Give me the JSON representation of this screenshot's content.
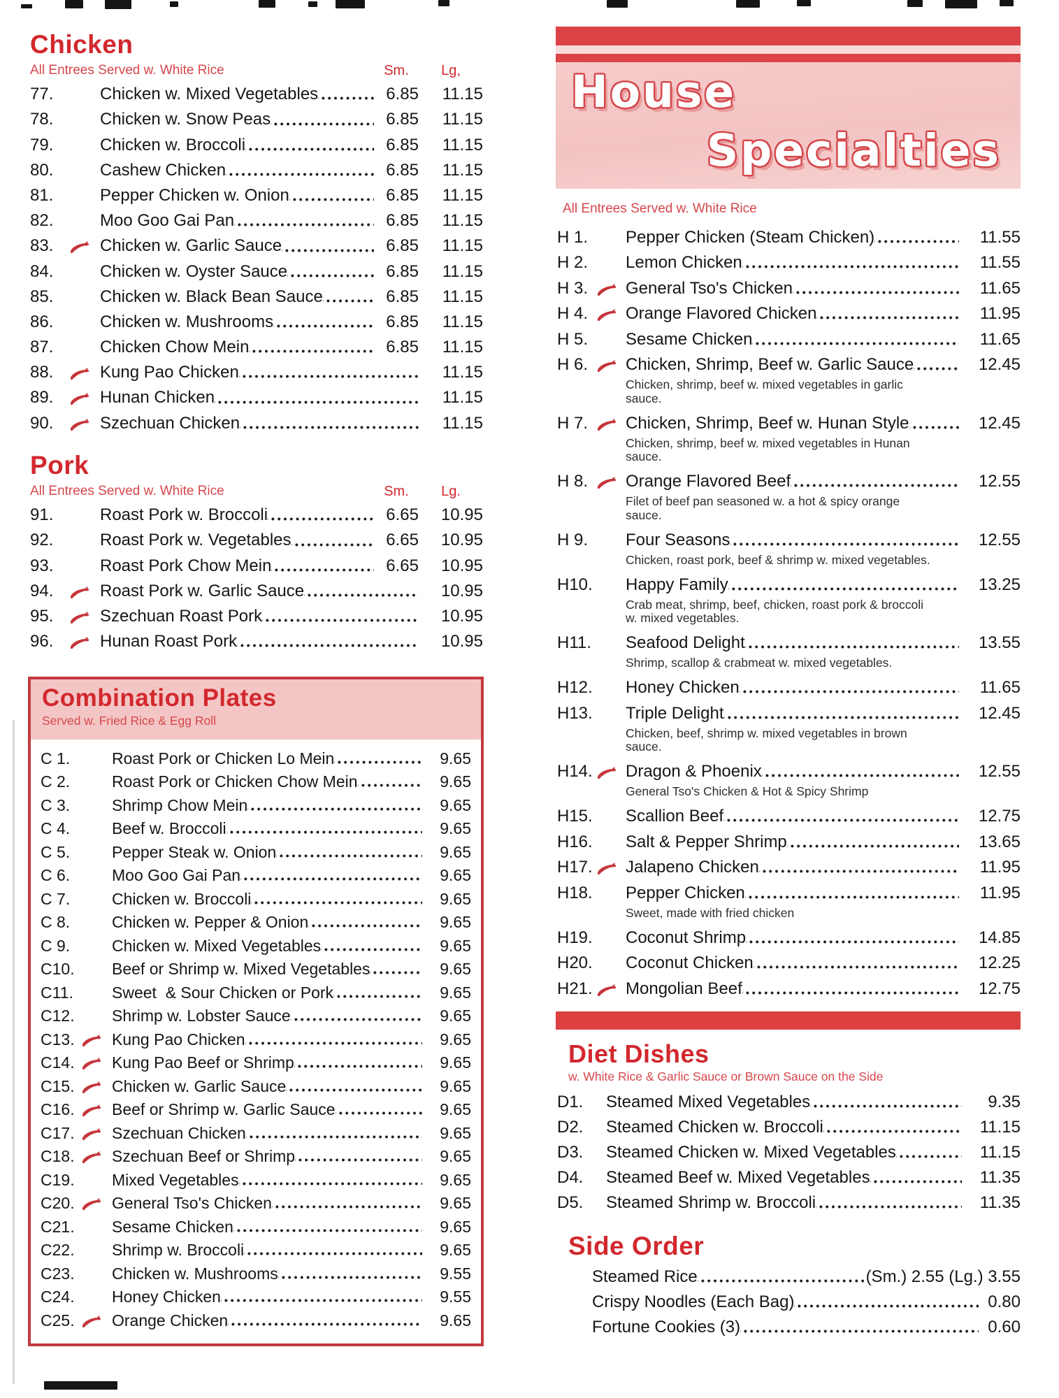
{
  "page": {
    "accent_red": "#d2282e",
    "note_red": "#d6474c",
    "banner_pink": "#f5c9c8",
    "bar_red": "#dc4347"
  },
  "chicken": {
    "title": "Chicken",
    "note": "All Entrees Served w. White Rice",
    "col_sm": "Sm.",
    "col_lg": "Lg,",
    "items": [
      {
        "num": "77.",
        "spicy": false,
        "name": "Chicken w. Mixed Vegetables",
        "sm": "6.85",
        "lg": "11.15"
      },
      {
        "num": "78.",
        "spicy": false,
        "name": "Chicken w. Snow Peas",
        "sm": "6.85",
        "lg": "11.15"
      },
      {
        "num": "79.",
        "spicy": false,
        "name": "Chicken w. Broccoli",
        "sm": "6.85",
        "lg": "11.15"
      },
      {
        "num": "80.",
        "spicy": false,
        "name": "Cashew Chicken",
        "sm": "6.85",
        "lg": "11.15"
      },
      {
        "num": "81.",
        "spicy": false,
        "name": "Pepper Chicken w. Onion",
        "sm": "6.85",
        "lg": "11.15"
      },
      {
        "num": "82.",
        "spicy": false,
        "name": "Moo Goo Gai Pan",
        "sm": "6.85",
        "lg": "11.15"
      },
      {
        "num": "83.",
        "spicy": true,
        "name": "Chicken w. Garlic Sauce",
        "sm": "6.85",
        "lg": "11.15"
      },
      {
        "num": "84.",
        "spicy": false,
        "name": "Chicken w. Oyster Sauce",
        "sm": "6.85",
        "lg": "11.15"
      },
      {
        "num": "85.",
        "spicy": false,
        "name": "Chicken w. Black Bean Sauce",
        "sm": "6.85",
        "lg": "11.15"
      },
      {
        "num": "86.",
        "spicy": false,
        "name": "Chicken w. Mushrooms",
        "sm": "6.85",
        "lg": "11.15"
      },
      {
        "num": "87.",
        "spicy": false,
        "name": "Chicken Chow Mein",
        "sm": "6.85",
        "lg": "11.15"
      },
      {
        "num": "88.",
        "spicy": true,
        "name": "Kung Pao Chicken",
        "sm": "",
        "lg": "11.15"
      },
      {
        "num": "89.",
        "spicy": true,
        "name": "Hunan Chicken",
        "sm": "",
        "lg": "11.15"
      },
      {
        "num": "90.",
        "spicy": true,
        "name": "Szechuan Chicken",
        "sm": "",
        "lg": "11.15"
      }
    ]
  },
  "pork": {
    "title": "Pork",
    "note": "All Entrees Served w. White Rice",
    "col_sm": "Sm.",
    "col_lg": "Lg.",
    "items": [
      {
        "num": "91.",
        "spicy": false,
        "name": "Roast Pork w. Broccoli",
        "sm": "6.65",
        "lg": "10.95"
      },
      {
        "num": "92.",
        "spicy": false,
        "name": "Roast Pork w. Vegetables",
        "sm": "6.65",
        "lg": "10.95"
      },
      {
        "num": "93.",
        "spicy": false,
        "name": "Roast Pork Chow Mein",
        "sm": "6.65",
        "lg": "10.95"
      },
      {
        "num": "94.",
        "spicy": true,
        "name": "Roast Pork w. Garlic Sauce",
        "sm": "",
        "lg": "10.95"
      },
      {
        "num": "95.",
        "spicy": true,
        "name": "Szechuan Roast Pork",
        "sm": "",
        "lg": "10.95"
      },
      {
        "num": "96.",
        "spicy": true,
        "name": "Hunan Roast Pork",
        "sm": "",
        "lg": "10.95"
      }
    ]
  },
  "combo": {
    "title": "Combination Plates",
    "note": "Served w. Fried Rice & Egg Roll",
    "items": [
      {
        "num": "C 1.",
        "spicy": false,
        "name": "Roast Pork or Chicken Lo Mein",
        "price": "9.65"
      },
      {
        "num": "C 2.",
        "spicy": false,
        "name": "Roast Pork or Chicken Chow Mein",
        "price": "9.65"
      },
      {
        "num": "C 3.",
        "spicy": false,
        "name": "Shrimp Chow Mein",
        "price": "9.65"
      },
      {
        "num": "C 4.",
        "spicy": false,
        "name": "Beef w. Broccoli",
        "price": "9.65"
      },
      {
        "num": "C 5.",
        "spicy": false,
        "name": "Pepper Steak w. Onion",
        "price": "9.65"
      },
      {
        "num": "C 6.",
        "spicy": false,
        "name": "Moo Goo Gai Pan",
        "price": "9.65"
      },
      {
        "num": "C 7.",
        "spicy": false,
        "name": "Chicken w. Broccoli",
        "price": "9.65"
      },
      {
        "num": "C 8.",
        "spicy": false,
        "name": "Chicken w. Pepper & Onion",
        "price": "9.65"
      },
      {
        "num": "C 9.",
        "spicy": false,
        "name": "Chicken w. Mixed Vegetables",
        "price": "9.65"
      },
      {
        "num": "C10.",
        "spicy": false,
        "name": "Beef or Shrimp w. Mixed Vegetables",
        "price": "9.65"
      },
      {
        "num": "C11.",
        "spicy": false,
        "name": "Sweet  & Sour Chicken or Pork",
        "price": "9.65"
      },
      {
        "num": "C12.",
        "spicy": false,
        "name": "Shrimp w. Lobster Sauce",
        "price": "9.65"
      },
      {
        "num": "C13.",
        "spicy": true,
        "name": "Kung Pao Chicken",
        "price": "9.65"
      },
      {
        "num": "C14.",
        "spicy": true,
        "name": "Kung Pao Beef or Shrimp",
        "price": "9.65"
      },
      {
        "num": "C15.",
        "spicy": true,
        "name": "Chicken w. Garlic Sauce",
        "price": "9.65"
      },
      {
        "num": "C16.",
        "spicy": true,
        "name": "Beef or Shrimp w. Garlic Sauce",
        "price": "9.65"
      },
      {
        "num": "C17.",
        "spicy": true,
        "name": "Szechuan Chicken",
        "price": "9.65"
      },
      {
        "num": "C18.",
        "spicy": true,
        "name": "Szechuan Beef or Shrimp",
        "price": "9.65"
      },
      {
        "num": "C19.",
        "spicy": false,
        "name": "Mixed Vegetables",
        "price": "9.65"
      },
      {
        "num": "C20.",
        "spicy": true,
        "name": "General Tso's Chicken",
        "price": "9.65"
      },
      {
        "num": "C21.",
        "spicy": false,
        "name": "Sesame Chicken",
        "price": "9.65"
      },
      {
        "num": "C22.",
        "spicy": false,
        "name": "Shrimp w. Broccoli",
        "price": "9.65"
      },
      {
        "num": "C23.",
        "spicy": false,
        "name": "Chicken w. Mushrooms",
        "price": "9.55"
      },
      {
        "num": "C24.",
        "spicy": false,
        "name": "Honey Chicken",
        "price": "9.55"
      },
      {
        "num": "C25.",
        "spicy": true,
        "name": "Orange Chicken",
        "price": "9.65"
      }
    ]
  },
  "house": {
    "title_line1": "House",
    "title_line2": "Specialties",
    "note": "All Entrees Served w. White Rice",
    "items": [
      {
        "num": "H 1.",
        "spicy": false,
        "name": "Pepper Chicken (Steam Chicken)",
        "price": "11.55"
      },
      {
        "num": "H 2.",
        "spicy": false,
        "name": "Lemon Chicken",
        "price": "11.55"
      },
      {
        "num": "H 3.",
        "spicy": true,
        "name": "General Tso's Chicken",
        "price": "11.65"
      },
      {
        "num": "H 4.",
        "spicy": true,
        "name": "Orange Flavored Chicken",
        "price": "11.95"
      },
      {
        "num": "H 5.",
        "spicy": false,
        "name": "Sesame Chicken",
        "price": "11.65"
      },
      {
        "num": "H 6.",
        "spicy": true,
        "name": "Chicken, Shrimp, Beef w. Garlic Sauce",
        "price": "12.45",
        "desc": [
          "Chicken, shrimp, beef w. mixed vegetables in garlic",
          "sauce."
        ]
      },
      {
        "num": "H 7.",
        "spicy": true,
        "name": "Chicken, Shrimp, Beef w. Hunan Style",
        "price": "12.45",
        "desc": [
          "Chicken, shrimp, beef w. mixed vegetables in Hunan",
          "sauce."
        ]
      },
      {
        "num": "H 8.",
        "spicy": true,
        "name": "Orange Flavored Beef",
        "price": "12.55",
        "desc": [
          "Filet of beef pan seasoned w. a hot & spicy orange",
          "sauce."
        ]
      },
      {
        "num": "H 9.",
        "spicy": false,
        "name": "Four Seasons",
        "price": "12.55",
        "desc": [
          "Chicken, roast pork, beef & shrimp w. mixed vegetables."
        ]
      },
      {
        "num": "H10.",
        "spicy": false,
        "name": "Happy Family",
        "price": "13.25",
        "desc": [
          "Crab meat, shrimp, beef, chicken, roast pork & broccoli",
          "w. mixed vegetables."
        ]
      },
      {
        "num": "H11.",
        "spicy": false,
        "name": "Seafood Delight",
        "price": "13.55",
        "desc": [
          "Shrimp, scallop & crabmeat w. mixed vegetables."
        ]
      },
      {
        "num": "H12.",
        "spicy": false,
        "name": "Honey Chicken",
        "price": "11.65"
      },
      {
        "num": "H13.",
        "spicy": false,
        "name": "Triple Delight",
        "price": "12.45",
        "desc": [
          "Chicken, beef, shrimp w. mixed vegetables in brown",
          "sauce."
        ]
      },
      {
        "num": "H14.",
        "spicy": true,
        "name": "Dragon & Phoenix",
        "price": "12.55",
        "desc": [
          "General Tso's Chicken & Hot & Spicy Shrimp"
        ]
      },
      {
        "num": "H15.",
        "spicy": false,
        "name": "Scallion Beef",
        "price": "12.75"
      },
      {
        "num": "H16.",
        "spicy": false,
        "name": "Salt & Pepper Shrimp",
        "price": "13.65"
      },
      {
        "num": "H17.",
        "spicy": true,
        "name": "Jalapeno Chicken",
        "price": "11.95"
      },
      {
        "num": "H18.",
        "spicy": false,
        "name": "Pepper Chicken",
        "price": "11.95",
        "desc": [
          "Sweet, made with fried chicken"
        ]
      },
      {
        "num": "H19.",
        "spicy": false,
        "name": "Coconut Shrimp",
        "price": "14.85"
      },
      {
        "num": "H20.",
        "spicy": false,
        "name": "Coconut Chicken",
        "price": "12.25"
      },
      {
        "num": "H21.",
        "spicy": true,
        "name": "Mongolian Beef",
        "price": "12.75"
      }
    ]
  },
  "diet": {
    "title": "Diet Dishes",
    "note": "w. White Rice & Garlic Sauce or Brown Sauce on the Side",
    "items": [
      {
        "num": "D1.",
        "spicy": false,
        "name": "Steamed Mixed Vegetables",
        "price": "9.35"
      },
      {
        "num": "D2.",
        "spicy": false,
        "name": "Steamed Chicken w. Broccoli",
        "price": "11.15"
      },
      {
        "num": "D3.",
        "spicy": false,
        "name": "Steamed Chicken w. Mixed Vegetables",
        "price": "11.15"
      },
      {
        "num": "D4.",
        "spicy": false,
        "name": "Steamed Beef w. Mixed Vegetables",
        "price": "11.35"
      },
      {
        "num": "D5.",
        "spicy": false,
        "name": "Steamed Shrimp w. Broccoli",
        "price": "11.35"
      }
    ]
  },
  "side": {
    "title": "Side Order",
    "items": [
      {
        "name": "Steamed Rice",
        "price": "(Sm.) 2.55 (Lg.) 3.55"
      },
      {
        "name": "Crispy Noodles (Each Bag)",
        "price": "0.80"
      },
      {
        "name": "Fortune Cookies (3)",
        "price": "0.60"
      }
    ]
  }
}
